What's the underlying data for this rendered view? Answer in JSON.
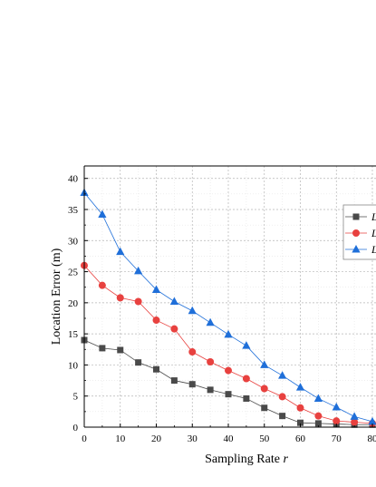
{
  "chart_data": {
    "type": "line",
    "title": "",
    "xlabel": "Sampling Rate",
    "xlabel_var": "r",
    "ylabel": "Location Error (m)",
    "xlim": [
      0,
      80
    ],
    "ylim": [
      0,
      42
    ],
    "xticks": [
      "0",
      "10",
      "20",
      "30",
      "40",
      "50",
      "60",
      "70",
      "80"
    ],
    "yticks": [
      "0",
      "5",
      "10",
      "15",
      "20",
      "25",
      "30",
      "35",
      "40"
    ],
    "grid": true,
    "legend_position": "top-right",
    "x": [
      0,
      5,
      10,
      15,
      20,
      25,
      30,
      35,
      40,
      45,
      50,
      55,
      60,
      65,
      70,
      75,
      80
    ],
    "series": [
      {
        "name": "L",
        "marker": "square",
        "color": "#4a4a4a",
        "values": [
          14.0,
          12.7,
          12.4,
          10.4,
          9.3,
          7.5,
          6.9,
          6.0,
          5.3,
          4.6,
          3.1,
          1.8,
          0.7,
          0.6,
          0.5,
          0.4,
          0.4
        ]
      },
      {
        "name": "L",
        "marker": "circle",
        "color": "#e8413f",
        "values": [
          26.0,
          22.8,
          20.8,
          20.2,
          17.2,
          15.8,
          12.1,
          10.5,
          9.1,
          7.8,
          6.2,
          4.9,
          3.1,
          1.8,
          1.0,
          0.8,
          0.6
        ]
      },
      {
        "name": "L",
        "marker": "triangle",
        "color": "#1f6fd9",
        "values": [
          37.7,
          34.2,
          28.2,
          25.1,
          22.1,
          20.2,
          18.7,
          16.8,
          14.9,
          13.1,
          10.0,
          8.3,
          6.4,
          4.6,
          3.2,
          1.7,
          0.9
        ]
      }
    ]
  }
}
